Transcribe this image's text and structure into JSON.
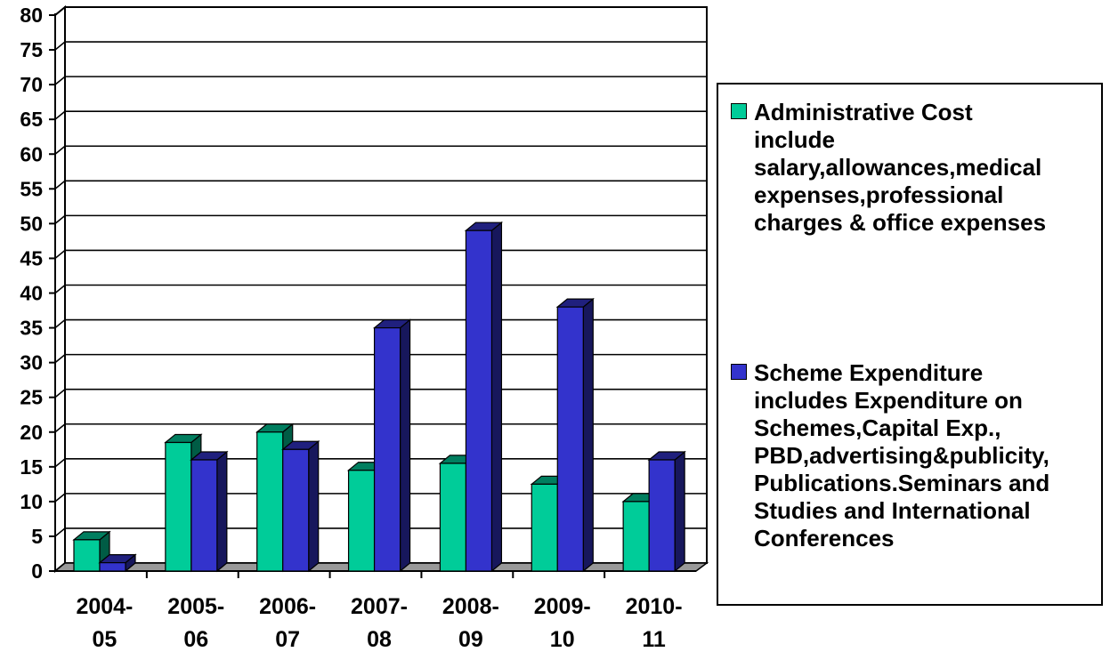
{
  "chart_data": {
    "type": "bar",
    "style": "3d-clustered-column",
    "categories": [
      "2004-05",
      "2005-06",
      "2006-07",
      "2007-08",
      "2008-09",
      "2009-10",
      "2010-11"
    ],
    "category_labels": [
      [
        "2004-",
        "05"
      ],
      [
        "2005-",
        "06"
      ],
      [
        "2006-",
        "07"
      ],
      [
        "2007-",
        "08"
      ],
      [
        "2008-",
        "09"
      ],
      [
        "2009-",
        "10"
      ],
      [
        "2010-",
        "11"
      ]
    ],
    "series": [
      {
        "name": "Administrative Cost include salary,allowances,medical expenses,professional charges & office expenses",
        "name_lines": [
          "Administrative Cost",
          "include",
          "salary,allowances,medical",
          "expenses,professional",
          "charges & office expenses"
        ],
        "color": "#00CC99",
        "values": [
          4.5,
          18.5,
          20,
          14.5,
          15.5,
          12.5,
          10
        ]
      },
      {
        "name": "Scheme Expenditure includes Expenditure on Schemes,Capital Exp., PBD,advertising&publicity, Publications.Seminars and Studies and International Conferences",
        "name_lines": [
          "Scheme Expenditure",
          "includes Expenditure on",
          "Schemes,Capital Exp.,",
          "PBD,advertising&publicity,",
          "Publications.Seminars and",
          "Studies and International",
          "Conferences"
        ],
        "color": "#3333CC",
        "values": [
          1.2,
          16,
          17.5,
          35,
          49,
          38,
          16
        ]
      }
    ],
    "ylim": [
      0,
      80
    ],
    "ytick_step": 5,
    "yticks": [
      "0",
      "5",
      "10",
      "15",
      "20",
      "25",
      "30",
      "35",
      "40",
      "45",
      "50",
      "55",
      "60",
      "65",
      "70",
      "75",
      "80"
    ],
    "grid": true,
    "legend_position": "right",
    "title": "",
    "xlabel": "",
    "ylabel": ""
  }
}
